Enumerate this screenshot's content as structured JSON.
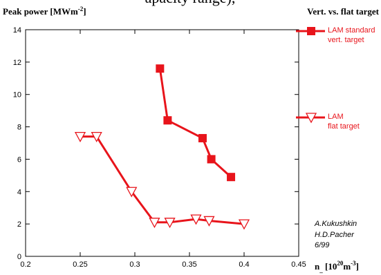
{
  "top_text": "apacity range),",
  "chart_data": {
    "type": "line",
    "y_label": [
      "Peak power  [MWm",
      "-2",
      "]"
    ],
    "x_label": [
      "n",
      "_",
      " [10",
      "20",
      "m",
      "-3",
      "]"
    ],
    "title": "Vert. vs. flat target",
    "annotations": [
      "A.Kukushkin",
      "H.D.Pacher",
      "6/99"
    ],
    "xlim": [
      0.2,
      0.45
    ],
    "xticks": [
      0.2,
      0.25,
      0.3,
      0.35,
      0.4,
      0.45
    ],
    "ylim": [
      0,
      14
    ],
    "yticks": [
      0,
      2,
      4,
      6,
      8,
      10,
      12,
      14
    ],
    "grid": false,
    "legend": "right",
    "series": [
      {
        "name": "LAM standard\nvert. target",
        "color": "#e8141b",
        "marker": "square",
        "x": [
          0.323,
          0.33,
          0.362,
          0.37,
          0.388
        ],
        "values": [
          11.6,
          8.4,
          7.3,
          6.0,
          4.9
        ]
      },
      {
        "name": "LAM\nflat target",
        "color": "#e8141b",
        "marker": "triangle-down",
        "x": [
          0.25,
          0.265,
          0.297,
          0.318,
          0.332,
          0.356,
          0.368,
          0.4
        ],
        "values": [
          7.4,
          7.4,
          4.0,
          2.1,
          2.1,
          2.3,
          2.2,
          2.0
        ]
      }
    ]
  }
}
